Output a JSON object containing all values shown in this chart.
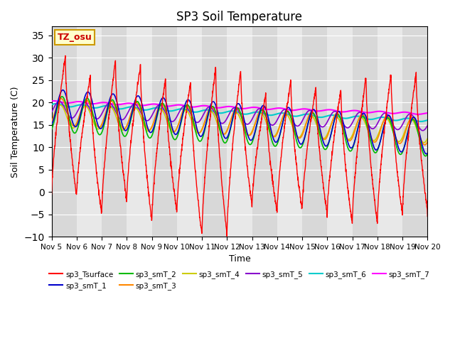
{
  "title": "SP3 Soil Temperature",
  "xlabel": "Time",
  "ylabel": "Soil Temperature (C)",
  "ylim": [
    -10,
    37
  ],
  "yticks": [
    -10,
    -5,
    0,
    5,
    10,
    15,
    20,
    25,
    30,
    35
  ],
  "xlim_start": 0,
  "xlim_end": 15,
  "xtick_labels": [
    "Nov 5",
    "Nov 6",
    "Nov 7",
    "Nov 8",
    "Nov 9",
    "Nov 10",
    "Nov 11",
    "Nov 12",
    "Nov 13",
    "Nov 14",
    "Nov 15",
    "Nov 16",
    "Nov 17",
    "Nov 18",
    "Nov 19",
    "Nov 20"
  ],
  "bg_color": "#e8e8e8",
  "fig_color": "#ffffff",
  "annotation_text": "TZ_osu",
  "annotation_bg": "#ffffcc",
  "annotation_border": "#cc9900",
  "legend_entries": [
    {
      "label": "sp3_Tsurface",
      "color": "#ff0000"
    },
    {
      "label": "sp3_smT_1",
      "color": "#0000cc"
    },
    {
      "label": "sp3_smT_2",
      "color": "#00bb00"
    },
    {
      "label": "sp3_smT_3",
      "color": "#ff8800"
    },
    {
      "label": "sp3_smT_4",
      "color": "#cccc00"
    },
    {
      "label": "sp3_smT_5",
      "color": "#8800cc"
    },
    {
      "label": "sp3_smT_6",
      "color": "#00cccc"
    },
    {
      "label": "sp3_smT_7",
      "color": "#ff00ff"
    }
  ]
}
